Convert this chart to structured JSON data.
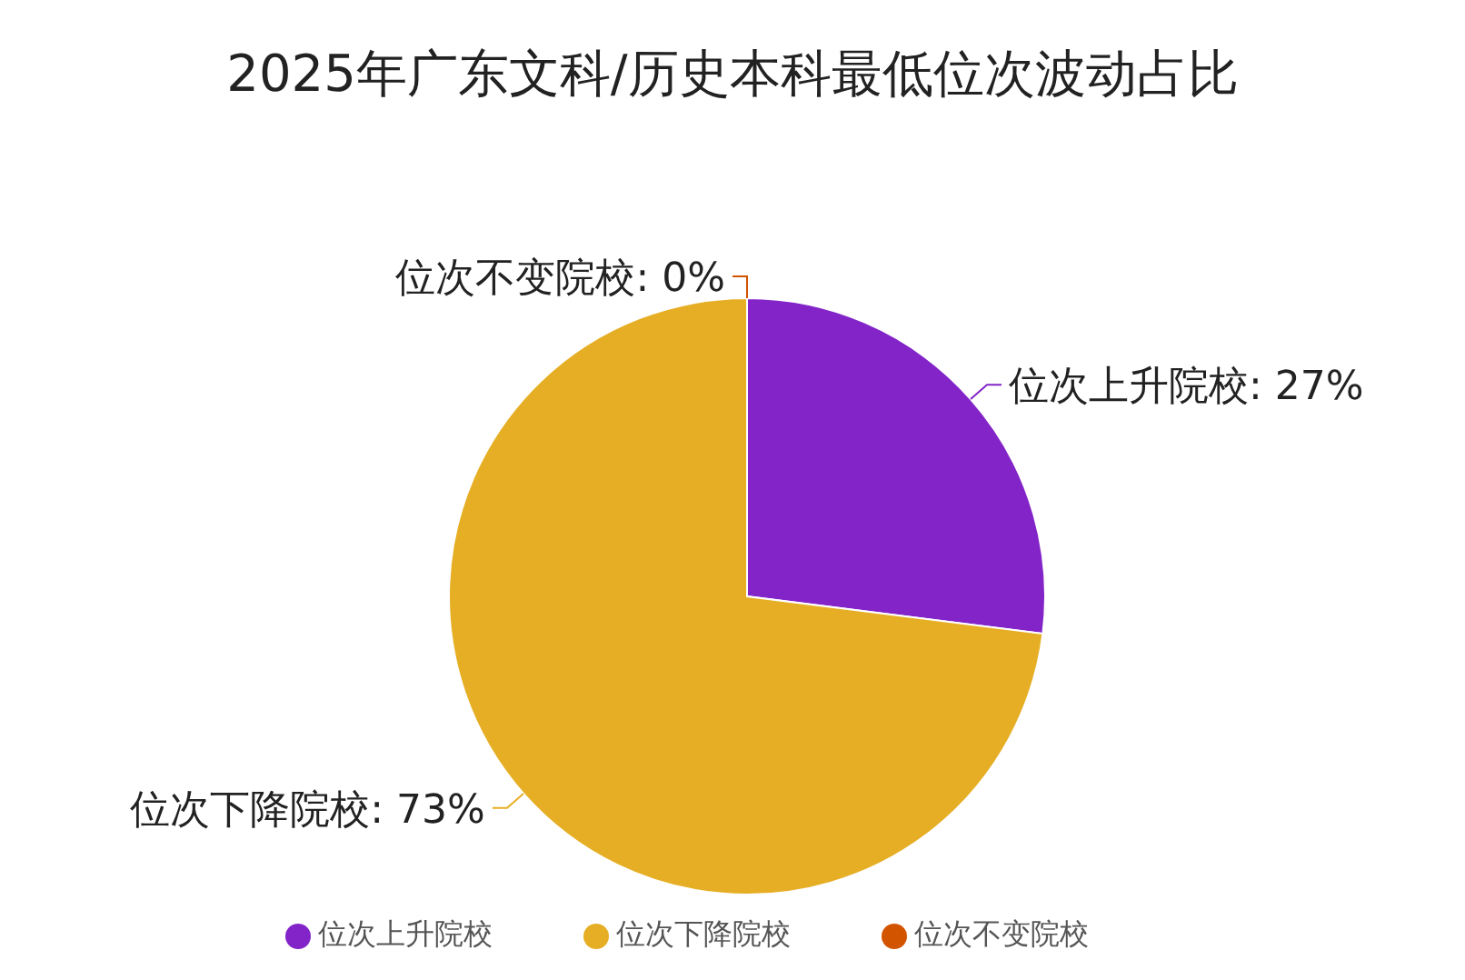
{
  "chart_data": {
    "type": "pie",
    "title": "2025年广东文科/历史本科最低位次波动占比",
    "categories": [
      "位次上升院校",
      "位次下降院校",
      "位次不变院校"
    ],
    "values": [
      27,
      73,
      0
    ],
    "value_labels": [
      "位次上升院校: 27%",
      "位次下降院校: 73%",
      "位次不变院校: 0%"
    ],
    "colors": [
      "#8224c8",
      "#e6ae24",
      "#d35400"
    ],
    "legend": "bottom"
  }
}
